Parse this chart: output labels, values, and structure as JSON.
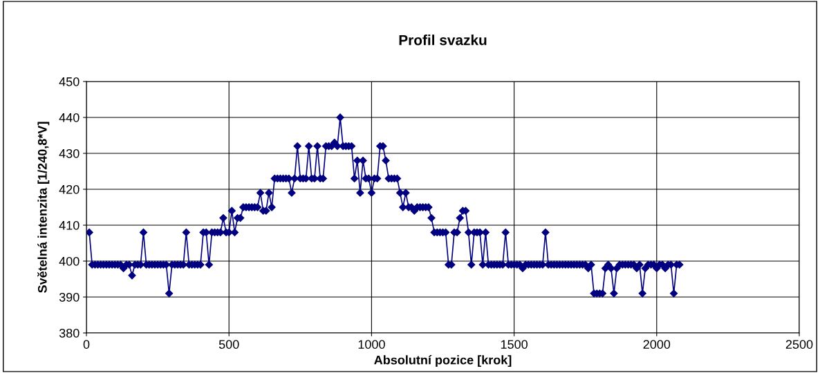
{
  "chart_data": {
    "type": "line",
    "title": "Profil svazku",
    "xlabel": "Absolutní pozice [krok]",
    "ylabel": "Světelná intenzita [1/240,8*V]",
    "x": [
      10,
      20,
      30,
      40,
      50,
      60,
      70,
      80,
      90,
      100,
      110,
      120,
      130,
      140,
      150,
      160,
      170,
      180,
      190,
      200,
      210,
      220,
      230,
      240,
      250,
      260,
      270,
      280,
      290,
      300,
      310,
      320,
      330,
      340,
      350,
      360,
      370,
      380,
      390,
      400,
      410,
      420,
      430,
      440,
      450,
      460,
      470,
      480,
      490,
      500,
      510,
      520,
      530,
      540,
      550,
      560,
      570,
      580,
      590,
      600,
      610,
      620,
      630,
      640,
      650,
      660,
      670,
      680,
      690,
      700,
      710,
      720,
      730,
      740,
      750,
      760,
      770,
      780,
      790,
      800,
      810,
      820,
      830,
      840,
      850,
      860,
      870,
      880,
      890,
      900,
      910,
      920,
      930,
      940,
      950,
      960,
      970,
      980,
      990,
      1000,
      1010,
      1020,
      1030,
      1040,
      1050,
      1060,
      1070,
      1080,
      1090,
      1100,
      1110,
      1120,
      1130,
      1140,
      1150,
      1160,
      1170,
      1180,
      1190,
      1200,
      1210,
      1220,
      1230,
      1240,
      1250,
      1260,
      1270,
      1280,
      1290,
      1300,
      1310,
      1320,
      1330,
      1340,
      1350,
      1360,
      1370,
      1380,
      1390,
      1400,
      1410,
      1420,
      1430,
      1440,
      1450,
      1460,
      1470,
      1480,
      1490,
      1500,
      1510,
      1520,
      1530,
      1540,
      1550,
      1560,
      1570,
      1580,
      1590,
      1600,
      1610,
      1620,
      1630,
      1640,
      1650,
      1660,
      1670,
      1680,
      1690,
      1700,
      1710,
      1720,
      1730,
      1740,
      1750,
      1760,
      1770,
      1780,
      1790,
      1800,
      1810,
      1820,
      1830,
      1840,
      1850,
      1860,
      1870,
      1880,
      1890,
      1900,
      1910,
      1920,
      1930,
      1940,
      1950,
      1960,
      1970,
      1980,
      1990,
      2000,
      2010,
      2020,
      2030,
      2040,
      2050,
      2060,
      2070,
      2080
    ],
    "series": [
      {
        "color": "#000080",
        "values": [
          408,
          399,
          399,
          399,
          399,
          399,
          399,
          399,
          399,
          399,
          399,
          399,
          398,
          399,
          399,
          396,
          399,
          399,
          399,
          408,
          399,
          399,
          399,
          399,
          399,
          399,
          399,
          399,
          391,
          399,
          399,
          399,
          399,
          399,
          408,
          399,
          399,
          399,
          399,
          399,
          408,
          408,
          399,
          408,
          408,
          408,
          408,
          412,
          408,
          408,
          414,
          408,
          412,
          412,
          415,
          415,
          415,
          415,
          415,
          415,
          419,
          414,
          414,
          419,
          415,
          423,
          423,
          423,
          423,
          423,
          423,
          419,
          423,
          432,
          423,
          423,
          423,
          432,
          423,
          423,
          432,
          423,
          423,
          432,
          432,
          432,
          433,
          432,
          440,
          432,
          432,
          432,
          432,
          423,
          428,
          419,
          428,
          423,
          423,
          419,
          423,
          423,
          432,
          432,
          428,
          423,
          423,
          423,
          423,
          419,
          415,
          419,
          415,
          415,
          414,
          415,
          415,
          415,
          415,
          415,
          412,
          408,
          408,
          408,
          408,
          408,
          399,
          399,
          408,
          408,
          412,
          414,
          414,
          408,
          399,
          408,
          408,
          408,
          399,
          408,
          399,
          399,
          399,
          399,
          399,
          399,
          408,
          399,
          399,
          399,
          399,
          399,
          398,
          399,
          399,
          399,
          399,
          399,
          399,
          399,
          408,
          399,
          399,
          399,
          399,
          399,
          399,
          399,
          399,
          399,
          399,
          399,
          399,
          399,
          399,
          398,
          399,
          391,
          391,
          391,
          391,
          398,
          399,
          398,
          391,
          398,
          399,
          399,
          399,
          399,
          399,
          399,
          398,
          399,
          391,
          398,
          399,
          399,
          399,
          398,
          399,
          399,
          398,
          399,
          399,
          391,
          399,
          399
        ]
      }
    ],
    "xlim": [
      0,
      2500
    ],
    "xticks": [
      0,
      500,
      1000,
      1500,
      2000,
      2500
    ],
    "ylim": [
      380,
      450
    ],
    "yticks": [
      380,
      390,
      400,
      410,
      420,
      430,
      440,
      450
    ],
    "grid": true,
    "marker": "diamond",
    "line_style": "solid",
    "legend": false
  }
}
